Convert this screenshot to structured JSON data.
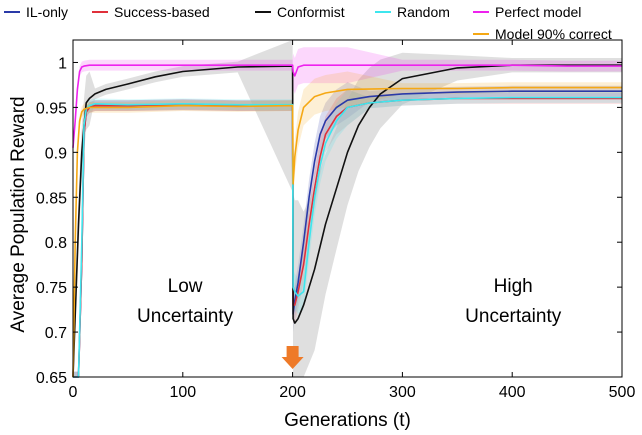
{
  "chart_data": {
    "type": "line",
    "title": "",
    "xlabel": "Generations (t)",
    "ylabel": "Average Population Reward",
    "xlim": [
      0,
      500
    ],
    "ylim": [
      0.65,
      1.025
    ],
    "xticks": [
      0,
      100,
      200,
      300,
      400,
      500
    ],
    "xtick_labels": [
      "0",
      "100",
      "200",
      "300",
      "400",
      "500"
    ],
    "yticks": [
      0.65,
      0.7,
      0.75,
      0.8,
      0.85,
      0.9,
      0.95,
      1
    ],
    "ytick_labels": [
      "0.65",
      "0.7",
      "0.75",
      "0.8",
      "0.85",
      "0.9",
      "0.95",
      "1"
    ],
    "grid": false,
    "legend_position": "top",
    "annotations": [
      {
        "line1": "Low",
        "line2": "Uncertainty",
        "x": 93,
        "y": 0.75
      },
      {
        "line1": "High",
        "line2": "Uncertainty",
        "x": 390,
        "y": 0.75
      },
      {
        "marker": "down-arrow",
        "x": 200,
        "y": 0.65
      }
    ],
    "series": [
      {
        "name": "IL-only",
        "color": "#2a3aa8",
        "x": [
          0,
          5,
          8,
          10,
          12,
          15,
          20,
          50,
          100,
          150,
          200,
          200.5,
          202,
          205,
          210,
          215,
          220,
          225,
          230,
          240,
          250,
          270,
          300,
          350,
          400,
          450,
          500
        ],
        "y": [
          0.65,
          0.65,
          0.78,
          0.92,
          0.945,
          0.95,
          0.952,
          0.952,
          0.953,
          0.952,
          0.952,
          0.72,
          0.735,
          0.755,
          0.8,
          0.85,
          0.89,
          0.92,
          0.935,
          0.95,
          0.958,
          0.962,
          0.965,
          0.967,
          0.968,
          0.968,
          0.968
        ]
      },
      {
        "name": "Success-based",
        "color": "#e0303a",
        "x": [
          0,
          5,
          8,
          10,
          12,
          15,
          20,
          50,
          100,
          150,
          200,
          200.5,
          202,
          205,
          210,
          215,
          220,
          225,
          230,
          240,
          250,
          270,
          300,
          350,
          400,
          450,
          500
        ],
        "y": [
          0.65,
          0.65,
          0.78,
          0.92,
          0.945,
          0.95,
          0.952,
          0.952,
          0.953,
          0.952,
          0.952,
          0.73,
          0.73,
          0.745,
          0.775,
          0.82,
          0.86,
          0.895,
          0.92,
          0.94,
          0.95,
          0.955,
          0.958,
          0.96,
          0.96,
          0.96,
          0.96
        ]
      },
      {
        "name": "Conformist",
        "color": "#111111",
        "x": [
          0,
          5,
          8,
          10,
          12,
          15,
          20,
          30,
          50,
          75,
          100,
          150,
          200,
          200.5,
          202,
          205,
          210,
          220,
          230,
          240,
          250,
          260,
          270,
          280,
          300,
          350,
          400,
          450,
          500
        ],
        "y": [
          0.65,
          0.82,
          0.9,
          0.93,
          0.955,
          0.96,
          0.965,
          0.97,
          0.976,
          0.984,
          0.99,
          0.995,
          0.996,
          0.715,
          0.71,
          0.715,
          0.73,
          0.77,
          0.82,
          0.86,
          0.9,
          0.93,
          0.95,
          0.965,
          0.982,
          0.994,
          0.997,
          0.997,
          0.997
        ]
      },
      {
        "name": "Random",
        "color": "#3ee6ee",
        "x": [
          0,
          5,
          8,
          10,
          12,
          15,
          20,
          50,
          100,
          150,
          200,
          200.5,
          202,
          205,
          210,
          215,
          220,
          225,
          230,
          240,
          250,
          270,
          300,
          350,
          400,
          450,
          500
        ],
        "y": [
          0.65,
          0.65,
          0.8,
          0.93,
          0.948,
          0.952,
          0.954,
          0.953,
          0.954,
          0.953,
          0.953,
          0.75,
          0.745,
          0.74,
          0.745,
          0.8,
          0.85,
          0.885,
          0.91,
          0.935,
          0.95,
          0.955,
          0.958,
          0.96,
          0.961,
          0.961,
          0.961
        ]
      },
      {
        "name": "Perfect model",
        "color": "#ee22ee",
        "x": [
          0,
          2,
          4,
          6,
          8,
          10,
          15,
          50,
          100,
          150,
          200,
          200.5,
          202,
          205,
          210,
          250,
          300,
          350,
          400,
          450,
          500
        ],
        "y": [
          0.905,
          0.935,
          0.97,
          0.99,
          0.995,
          0.996,
          0.997,
          0.997,
          0.997,
          0.997,
          0.997,
          0.99,
          0.985,
          0.995,
          0.997,
          0.997,
          0.997,
          0.997,
          0.997,
          0.996,
          0.996
        ]
      },
      {
        "name": "Model 90% correct",
        "color": "#f5a814",
        "x": [
          0,
          2,
          4,
          6,
          8,
          10,
          15,
          50,
          100,
          150,
          200,
          200.5,
          202,
          205,
          210,
          220,
          230,
          250,
          300,
          350,
          400,
          450,
          500
        ],
        "y": [
          0.65,
          0.8,
          0.9,
          0.935,
          0.945,
          0.948,
          0.95,
          0.95,
          0.952,
          0.951,
          0.952,
          0.865,
          0.895,
          0.925,
          0.95,
          0.962,
          0.966,
          0.97,
          0.971,
          0.971,
          0.972,
          0.972,
          0.972
        ]
      }
    ]
  }
}
